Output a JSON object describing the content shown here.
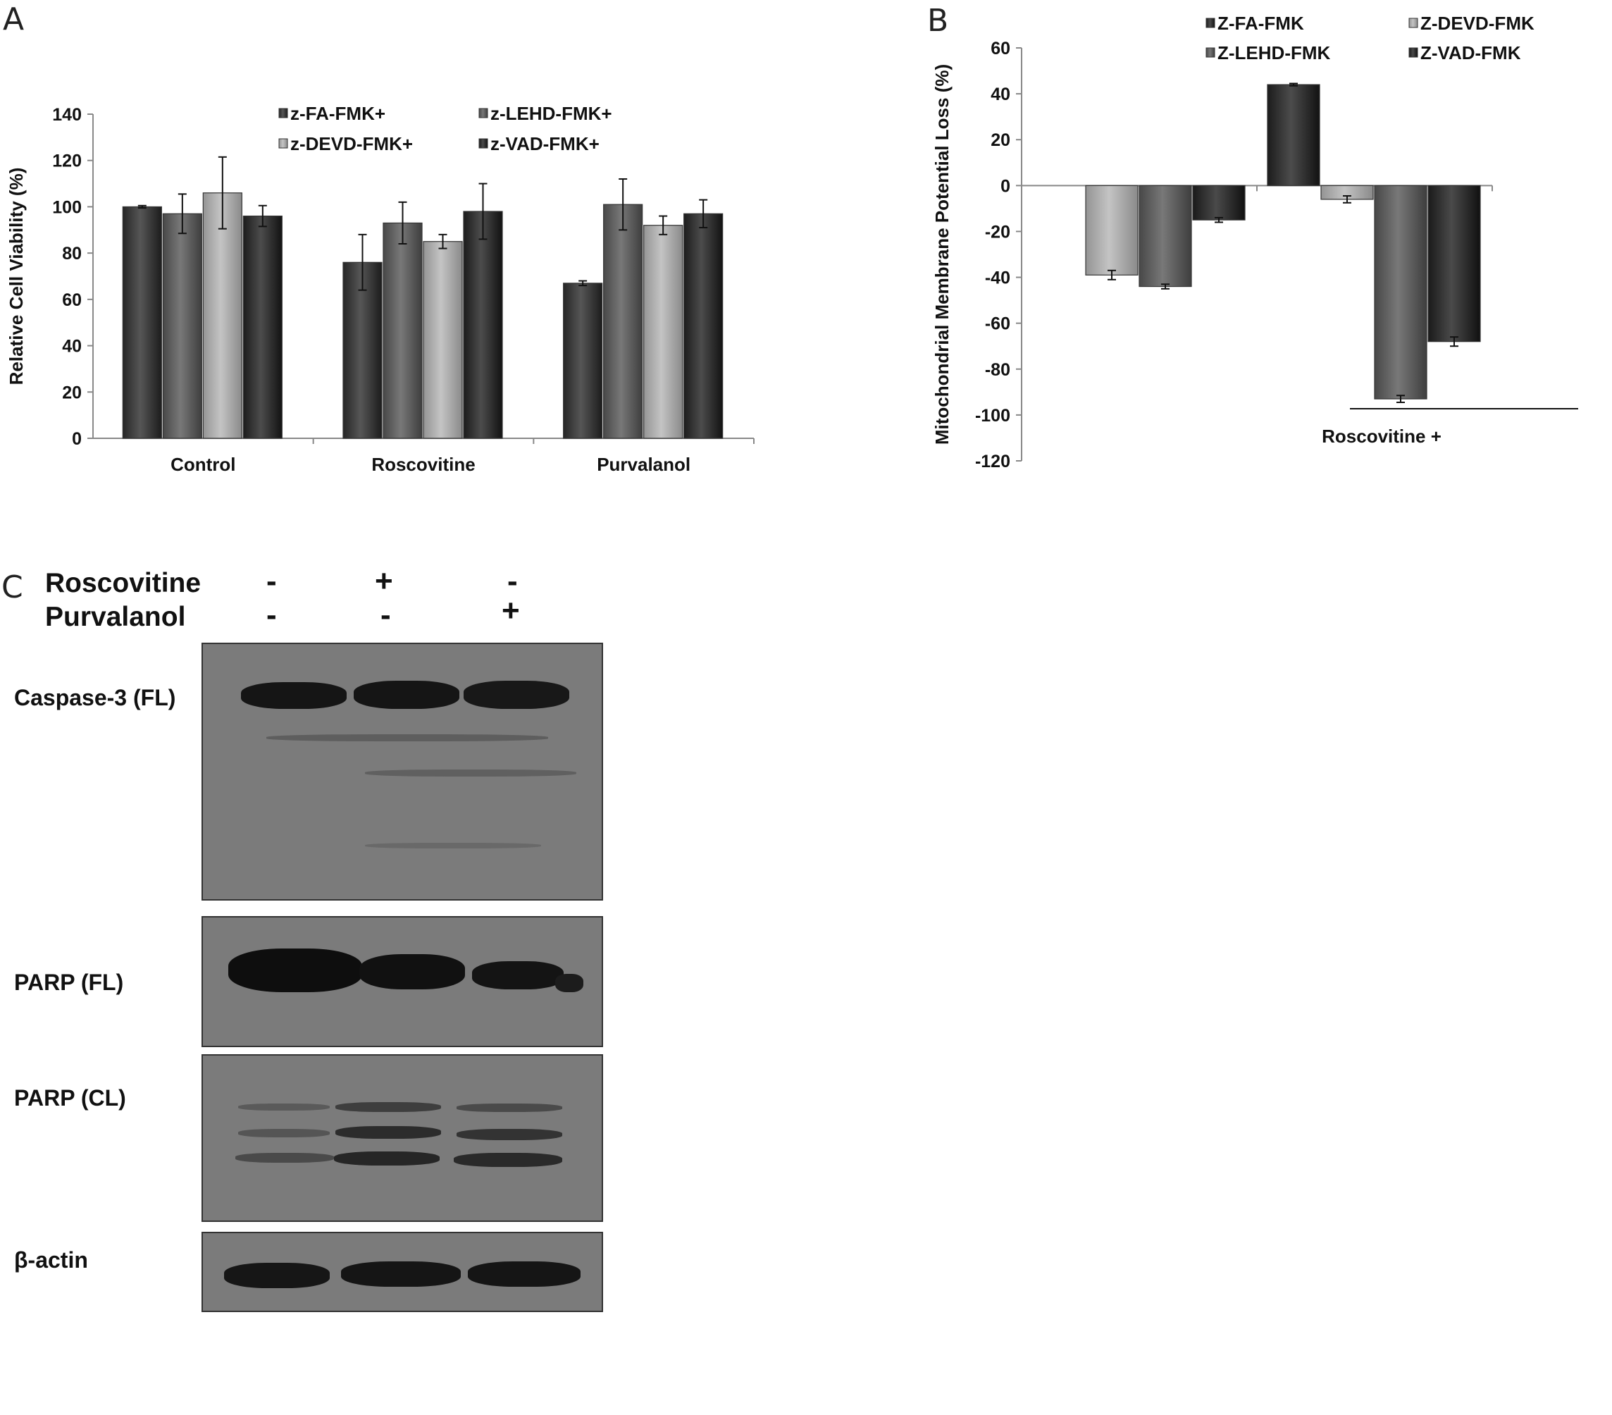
{
  "chart_data": [
    {
      "panel": "A",
      "type": "bar",
      "categories": [
        "Control",
        "Roscovitine",
        "Purvalanol"
      ],
      "ylabel": "Relative Cell Viability (%)",
      "ylim": [
        0,
        140
      ],
      "yticks": [
        0,
        20,
        40,
        60,
        80,
        100,
        120,
        140
      ],
      "legend": "top-center",
      "grid": false,
      "series": [
        {
          "name": "z-FA-FMK+",
          "color": "#3a3a3a",
          "values": [
            100,
            76,
            67
          ],
          "errors": [
            0.5,
            12,
            1
          ]
        },
        {
          "name": "z-LEHD-FMK+",
          "color": "#5c5c5c",
          "values": [
            97,
            93,
            101
          ],
          "errors": [
            8.5,
            9,
            11
          ]
        },
        {
          "name": "z-DEVD-FMK+",
          "color": "#a8a8a8",
          "values": [
            106,
            85,
            92
          ],
          "errors": [
            15.5,
            3,
            4
          ]
        },
        {
          "name": "z-VAD-FMK+",
          "color": "#303030",
          "values": [
            96,
            98,
            97
          ],
          "errors": [
            4.5,
            12,
            6
          ]
        }
      ]
    },
    {
      "panel": "B",
      "type": "bar",
      "categories": [
        "",
        "Roscovitine +"
      ],
      "ylabel": "Mitochondrial Membrane Potential Loss (%)",
      "ylim": [
        -120,
        60
      ],
      "yticks": [
        -120,
        -100,
        -80,
        -60,
        -40,
        -20,
        0,
        20,
        40,
        60
      ],
      "legend": "top-center",
      "grid": false,
      "series": [
        {
          "name": "Z-FA-FMK",
          "color": "#303030",
          "values": [
            null,
            44
          ],
          "errors": [
            null,
            0.5
          ]
        },
        {
          "name": "Z-DEVD-FMK",
          "color": "#a8a8a8",
          "values": [
            -39,
            -6
          ],
          "errors": [
            2,
            1.5
          ]
        },
        {
          "name": "Z-LEHD-FMK",
          "color": "#5c5c5c",
          "values": [
            -44,
            -93
          ],
          "errors": [
            1,
            1.5
          ]
        },
        {
          "name": "Z-VAD-FMK",
          "color": "#2e2e2e",
          "values": [
            -15,
            -68
          ],
          "errors": [
            1,
            2
          ]
        }
      ]
    }
  ],
  "panels": {
    "a": "A",
    "b": "B",
    "c": "C"
  },
  "western_blot": {
    "rows": [
      {
        "name": "Roscovitine",
        "signs": [
          "-",
          "+",
          "-"
        ]
      },
      {
        "name": "Purvalanol",
        "signs": [
          "-",
          "-",
          "+"
        ]
      }
    ],
    "blots": [
      "Caspase-3 (FL)",
      "PARP (FL)",
      "PARP (CL)",
      "β-actin"
    ]
  }
}
